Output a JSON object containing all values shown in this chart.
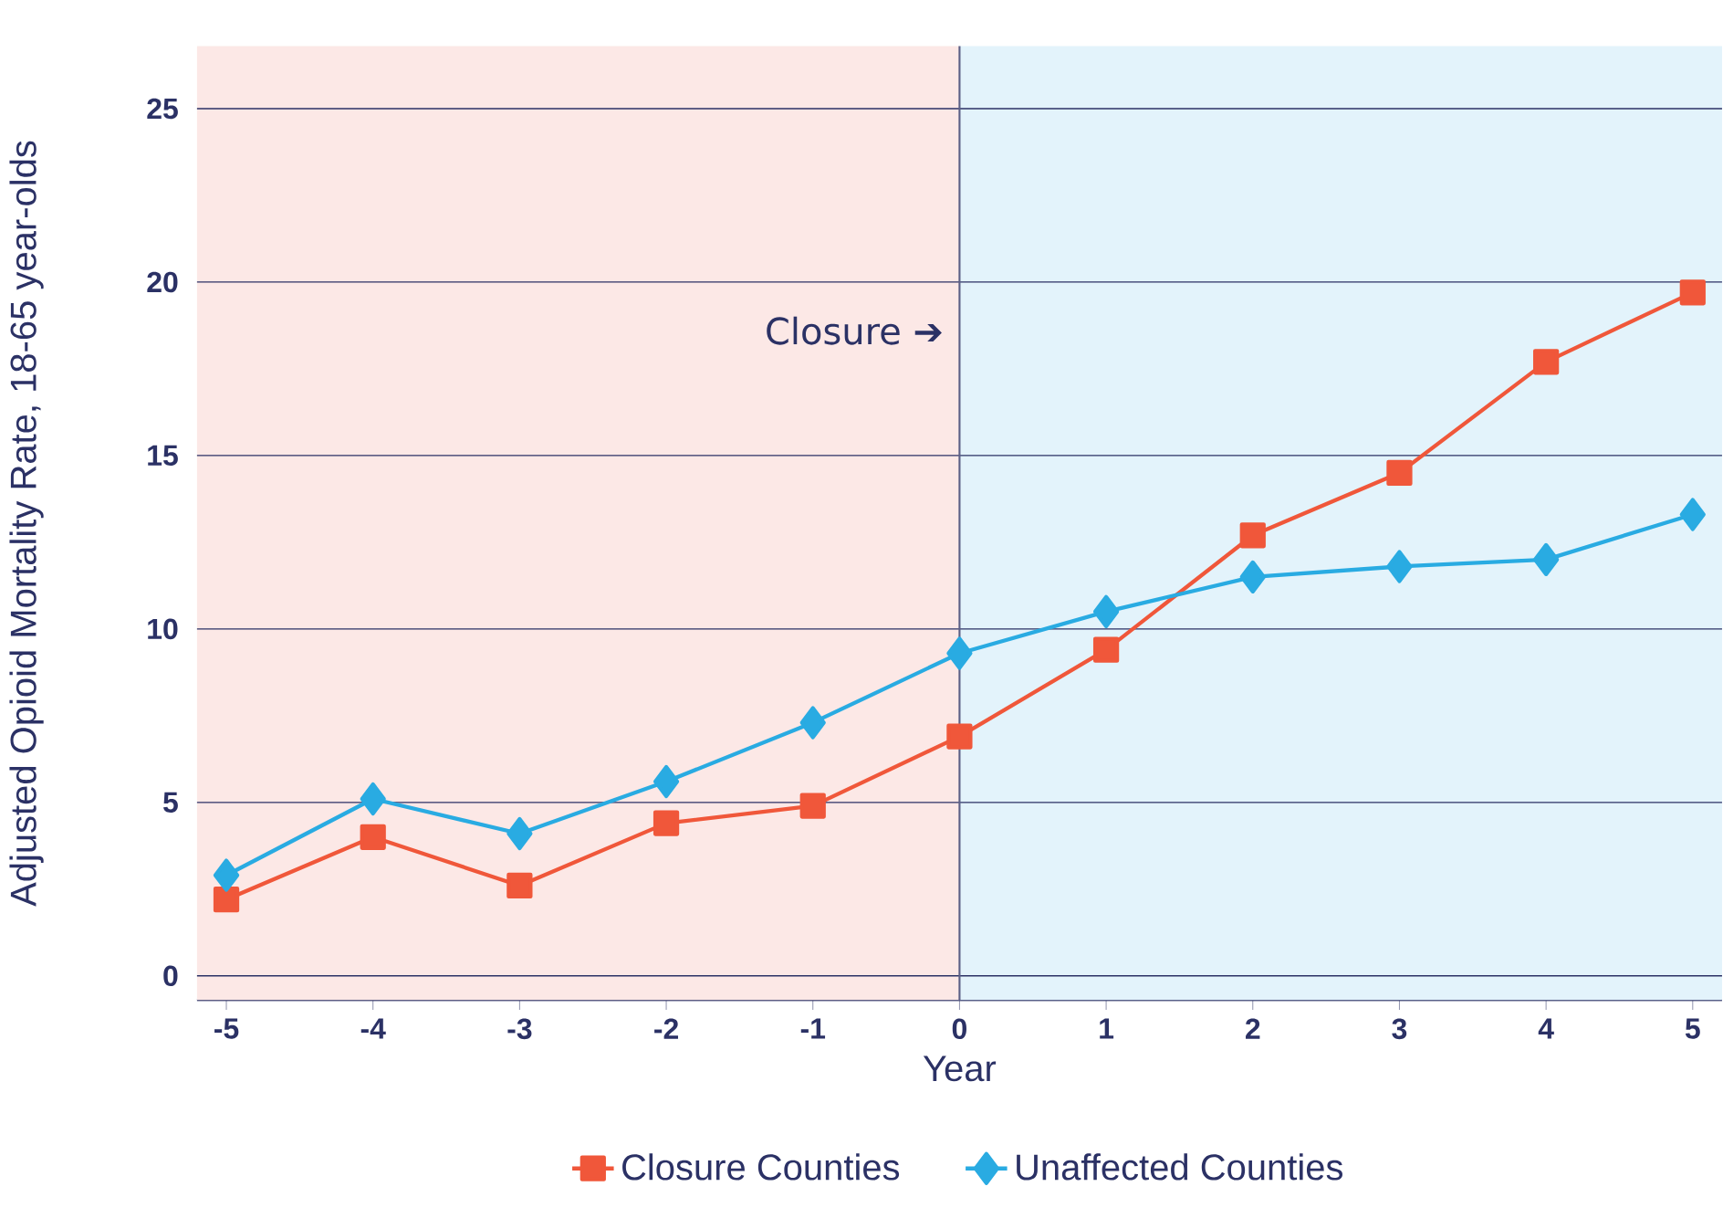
{
  "chart_data": {
    "type": "line",
    "xlabel": "Year",
    "ylabel": "Adjusted Opioid Mortality Rate, 18-65 year-olds",
    "x": [
      -5,
      -4,
      -3,
      -2,
      -1,
      0,
      1,
      2,
      3,
      4,
      5
    ],
    "series": [
      {
        "name": "Closure Counties",
        "color": "#f0573a",
        "marker": "square",
        "values": [
          2.2,
          4.0,
          2.6,
          4.4,
          4.9,
          6.9,
          9.4,
          12.7,
          14.5,
          17.7,
          19.7
        ]
      },
      {
        "name": "Unaffected Counties",
        "color": "#29abe2",
        "marker": "diamond",
        "values": [
          2.9,
          5.1,
          4.1,
          5.6,
          7.3,
          9.3,
          10.5,
          11.5,
          11.8,
          12.0,
          13.3
        ]
      }
    ],
    "xlim": [
      -5.2,
      5.2
    ],
    "ylim": [
      -0.7,
      26.8
    ],
    "xticks": [
      -5,
      -4,
      -3,
      -2,
      -1,
      0,
      1,
      2,
      3,
      4,
      5
    ],
    "yticks": [
      0,
      5,
      10,
      15,
      20,
      25
    ],
    "grid": "y",
    "legend": "bottom",
    "line_style": "solid",
    "bands": [
      {
        "axis": "x",
        "from": -5.2,
        "to": 0,
        "color": "#fce8e6"
      },
      {
        "axis": "x",
        "from": 0,
        "to": 5.2,
        "color": "#e3f3fb"
      }
    ],
    "ref_lines": [
      {
        "axis": "x",
        "value": 0,
        "color": "#5b5f86"
      }
    ],
    "annotations": [
      "Closure ➔"
    ]
  }
}
